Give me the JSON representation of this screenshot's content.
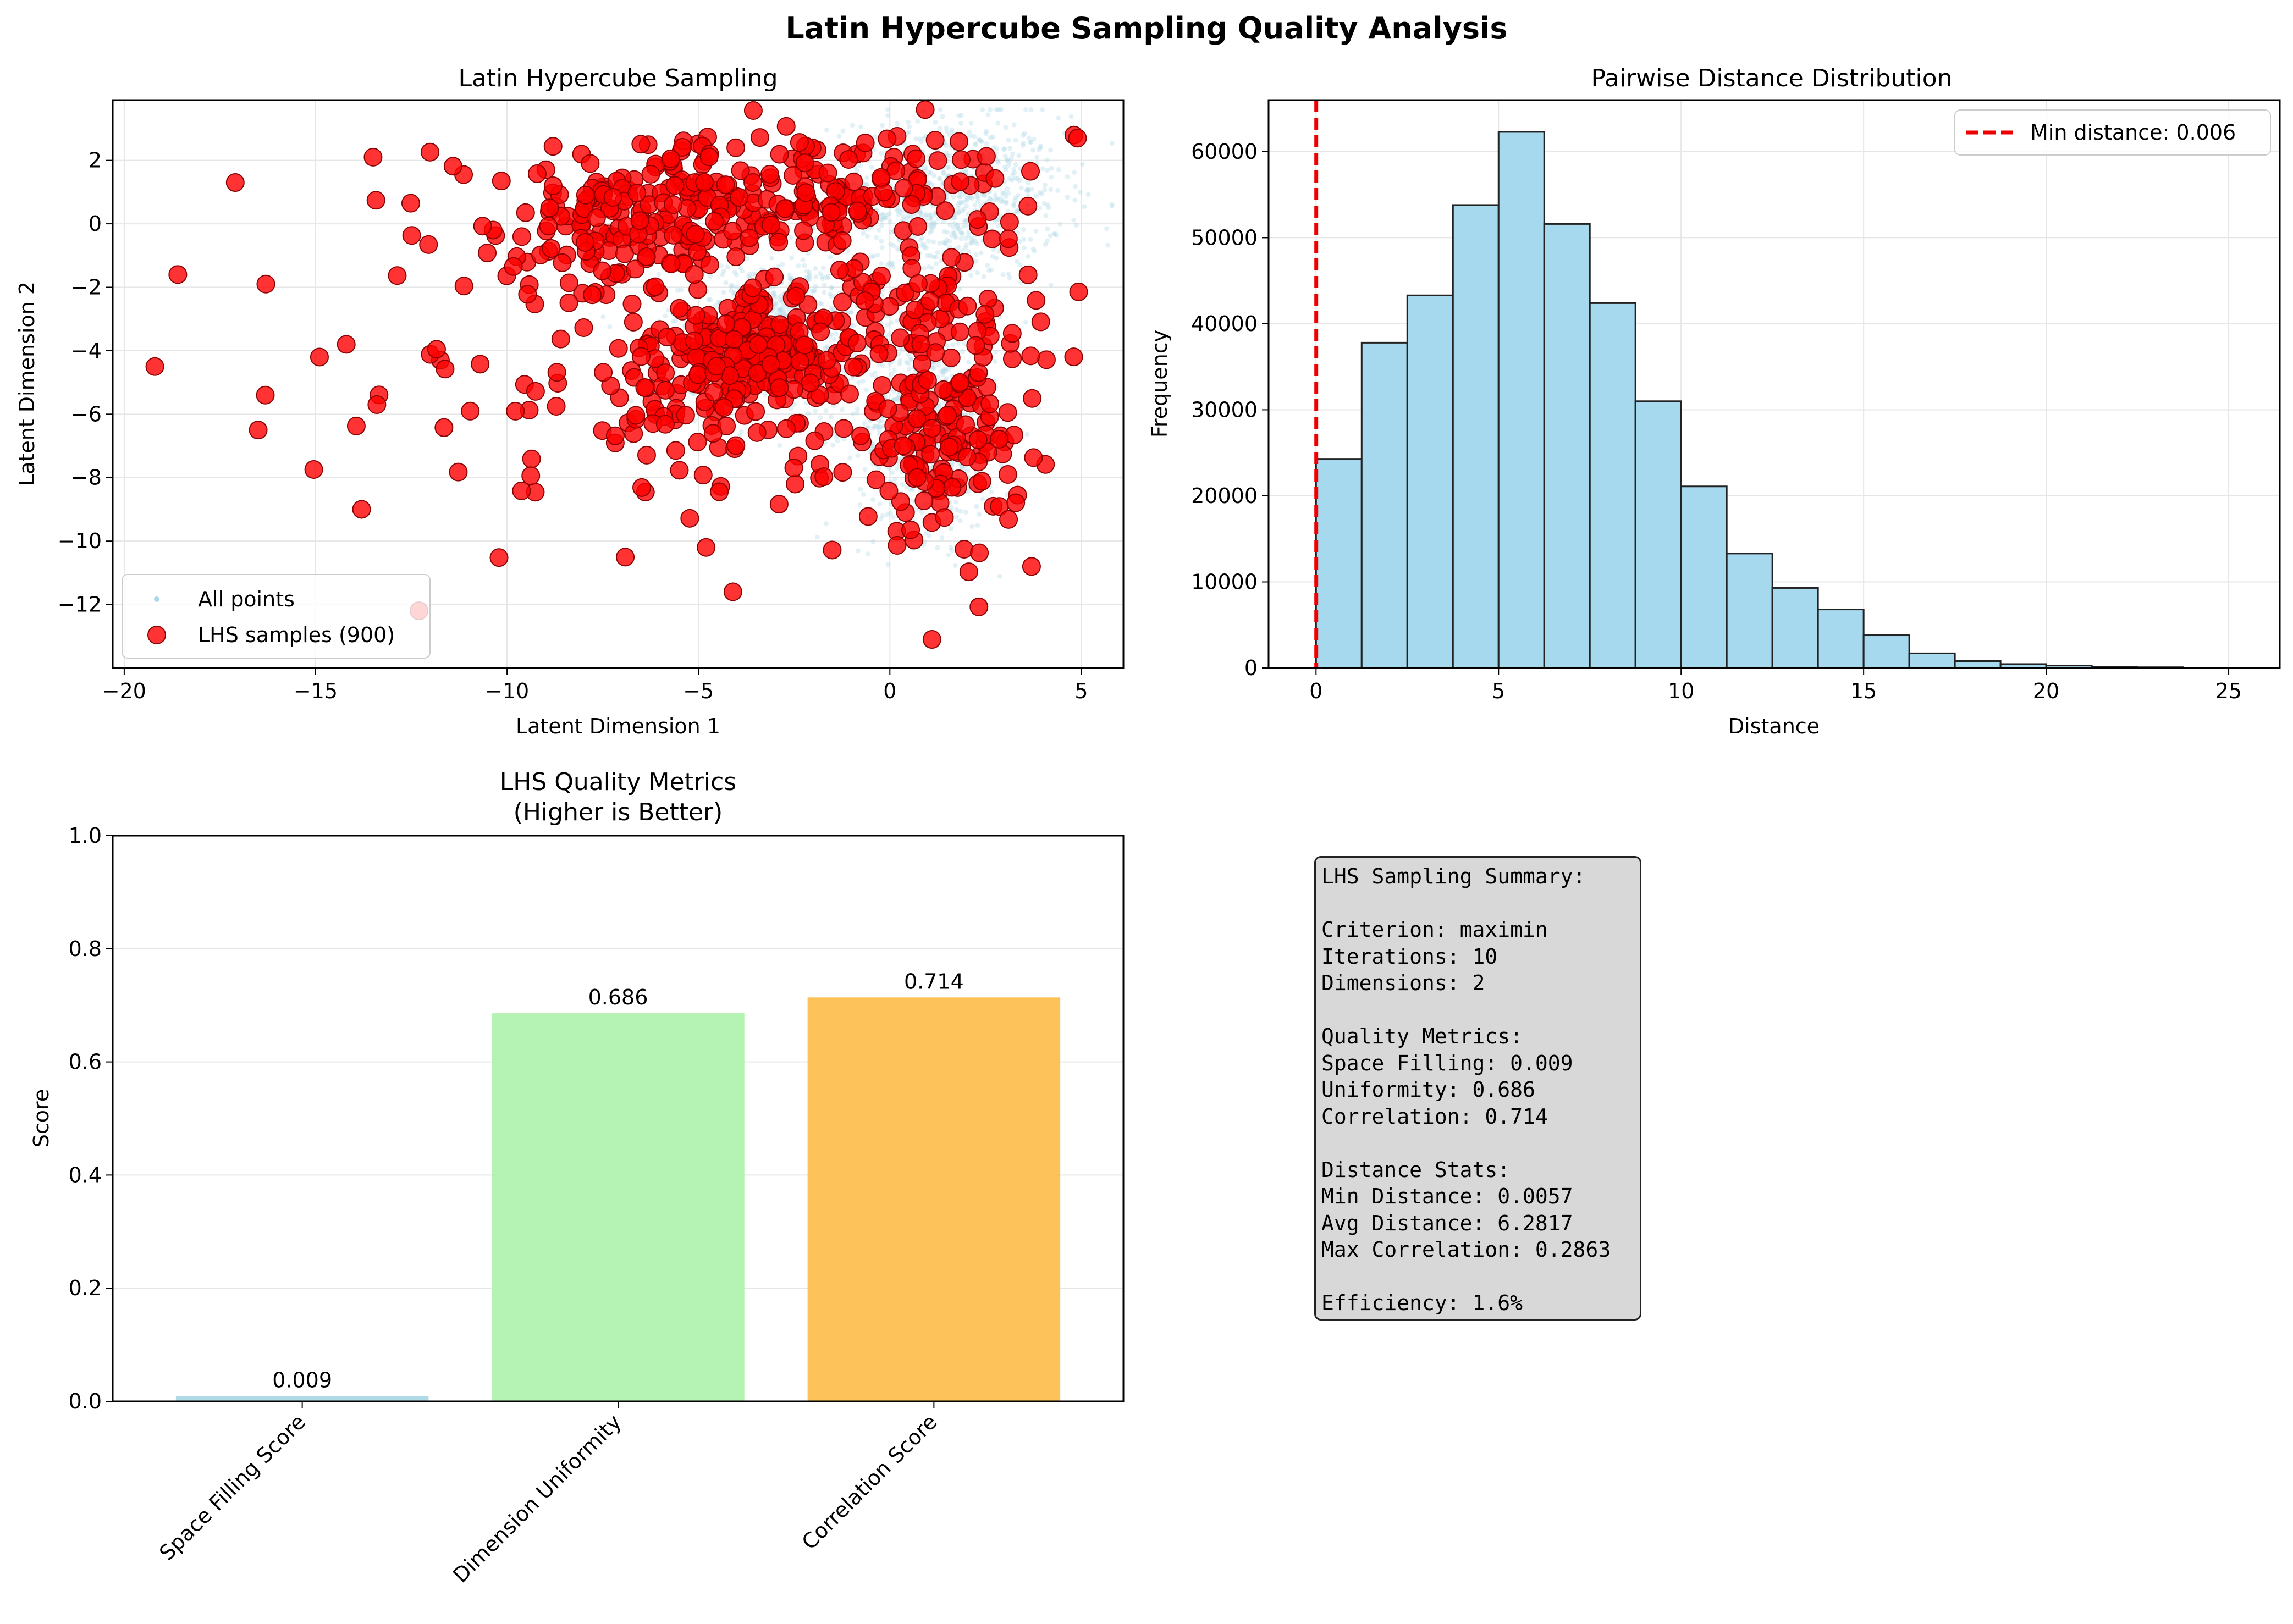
{
  "figure_title": "Latin Hypercube Sampling Quality Analysis",
  "colors": {
    "sample_red": "#ff0000",
    "cloud_blue": "#add8e6",
    "hist_fill": "#a6d8ee",
    "bar_colors": [
      "#add8e6",
      "#b0f2b0",
      "#fdbf50"
    ],
    "minline": "#ee0000"
  },
  "chart_data": [
    {
      "type": "scatter",
      "title": "Latin Hypercube Sampling",
      "xlabel": "Latent Dimension 1",
      "ylabel": "Latent Dimension 2",
      "xlim": [
        -20.3,
        6.1
      ],
      "ylim": [
        -14.0,
        3.9
      ],
      "xticks": [
        -20,
        -15,
        -10,
        -5,
        0,
        5
      ],
      "xtick_labels": [
        "−20",
        "−15",
        "−10",
        "−5",
        "0",
        "5"
      ],
      "yticks": [
        -12,
        -10,
        -8,
        -6,
        -4,
        -2,
        0,
        2
      ],
      "ytick_labels": [
        "−12",
        "−10",
        "−8",
        "−6",
        "−4",
        "−2",
        "0",
        "2"
      ],
      "grid": true,
      "legend_position": "lower-left",
      "series": [
        {
          "name": "All points",
          "kind": "background cloud",
          "clusters": [
            {
              "cx": 1.5,
              "cy": 0.8,
              "sx": 1.5,
              "sy": 1.3
            },
            {
              "cx": 1.0,
              "cy": -6.5,
              "sx": 0.9,
              "sy": 1.6
            },
            {
              "cx": -3.0,
              "cy": -3.5,
              "sx": 1.4,
              "sy": 1.2
            }
          ]
        },
        {
          "name": "LHS samples (900)",
          "count": 900,
          "clusters": [
            {
              "cx": -3.5,
              "cy": -3.8,
              "sx": 1.3,
              "sy": 0.8,
              "n": 180
            },
            {
              "cx": -4.5,
              "cy": 0.6,
              "sx": 2.5,
              "sy": 1.0,
              "n": 200
            },
            {
              "cx": -7.5,
              "cy": -0.5,
              "sx": 2.0,
              "sy": 1.0,
              "n": 90
            },
            {
              "cx": 1.2,
              "cy": -6.8,
              "sx": 1.1,
              "sy": 1.5,
              "n": 150
            },
            {
              "cx": -4.5,
              "cy": -5.5,
              "sx": 2.0,
              "sy": 1.2,
              "n": 100
            },
            {
              "cx": 1.0,
              "cy": -2.5,
              "sx": 1.5,
              "sy": 1.5,
              "n": 80
            },
            {
              "cx": 1.0,
              "cy": 1.2,
              "sx": 1.8,
              "sy": 1.0,
              "n": 60
            },
            {
              "cx": -9.0,
              "cy": -6.0,
              "sx": 3.0,
              "sy": 2.5,
              "n": 40
            }
          ],
          "outliers": [
            [
              -19.2,
              -4.5
            ],
            [
              -18.6,
              -1.6
            ],
            [
              -17.1,
              1.3
            ],
            [
              -16.5,
              -6.5
            ],
            [
              -16.3,
              -1.9
            ],
            [
              -14.9,
              -4.2
            ],
            [
              -14.2,
              -3.8
            ],
            [
              -13.8,
              -9.0
            ],
            [
              -13.5,
              2.1
            ],
            [
              -13.4,
              -5.7
            ],
            [
              -12.3,
              -12.2
            ],
            [
              4.9,
              2.7
            ],
            [
              3.7,
              -10.8
            ],
            [
              -4.8,
              -10.2
            ],
            [
              -4.1,
              -11.6
            ],
            [
              1.1,
              -13.1
            ]
          ]
        }
      ]
    },
    {
      "type": "bar",
      "subtype": "histogram",
      "title": "Pairwise Distance Distribution",
      "xlabel": "Distance",
      "ylabel": "Frequency",
      "xlim": [
        -1.3,
        26.4
      ],
      "ylim": [
        0,
        66000
      ],
      "xticks": [
        0,
        5,
        10,
        15,
        20,
        25
      ],
      "xtick_labels": [
        "0",
        "5",
        "10",
        "15",
        "20",
        "25"
      ],
      "yticks": [
        0,
        10000,
        20000,
        30000,
        40000,
        50000,
        60000
      ],
      "ytick_labels": [
        "0",
        "10000",
        "20000",
        "30000",
        "40000",
        "50000",
        "60000"
      ],
      "grid": true,
      "legend_position": "top-right",
      "bin_edges": [
        0.0,
        1.25,
        2.5,
        3.75,
        5.0,
        6.25,
        7.5,
        8.75,
        10.0,
        11.25,
        12.5,
        13.75,
        15.0,
        16.25,
        17.5,
        18.75,
        20.0,
        21.25,
        22.5,
        23.75,
        25.0
      ],
      "values": [
        24300,
        37800,
        43300,
        53800,
        62300,
        51600,
        42400,
        31000,
        21100,
        13300,
        9300,
        6800,
        3800,
        1700,
        800,
        450,
        280,
        150,
        80,
        30
      ],
      "reference_line": {
        "x": 0.006,
        "label": "Min distance: 0.006"
      }
    },
    {
      "type": "bar",
      "title": "LHS Quality Metrics",
      "subtitle": "(Higher is Better)",
      "xlabel": "",
      "ylabel": "Score",
      "ylim": [
        0,
        1.0
      ],
      "yticks": [
        0.0,
        0.2,
        0.4,
        0.6,
        0.8,
        1.0
      ],
      "ytick_labels": [
        "0.0",
        "0.2",
        "0.4",
        "0.6",
        "0.8",
        "1.0"
      ],
      "grid": true,
      "categories": [
        "Space Filling Score",
        "Dimension Uniformity",
        "Correlation Score"
      ],
      "values": [
        0.009,
        0.686,
        0.714
      ],
      "value_labels": [
        "0.009",
        "0.686",
        "0.714"
      ]
    }
  ],
  "summary": {
    "lines": [
      "LHS Sampling Summary:",
      "",
      "Criterion: maximin",
      "Iterations: 10",
      "Dimensions: 2",
      "",
      "Quality Metrics:",
      "Space Filling: 0.009",
      "Uniformity: 0.686",
      "Correlation: 0.714",
      "",
      "Distance Stats:",
      "Min Distance: 0.0057",
      "Avg Distance: 6.2817",
      "Max Correlation: 0.2863",
      "",
      "Efficiency: 1.6%"
    ]
  }
}
